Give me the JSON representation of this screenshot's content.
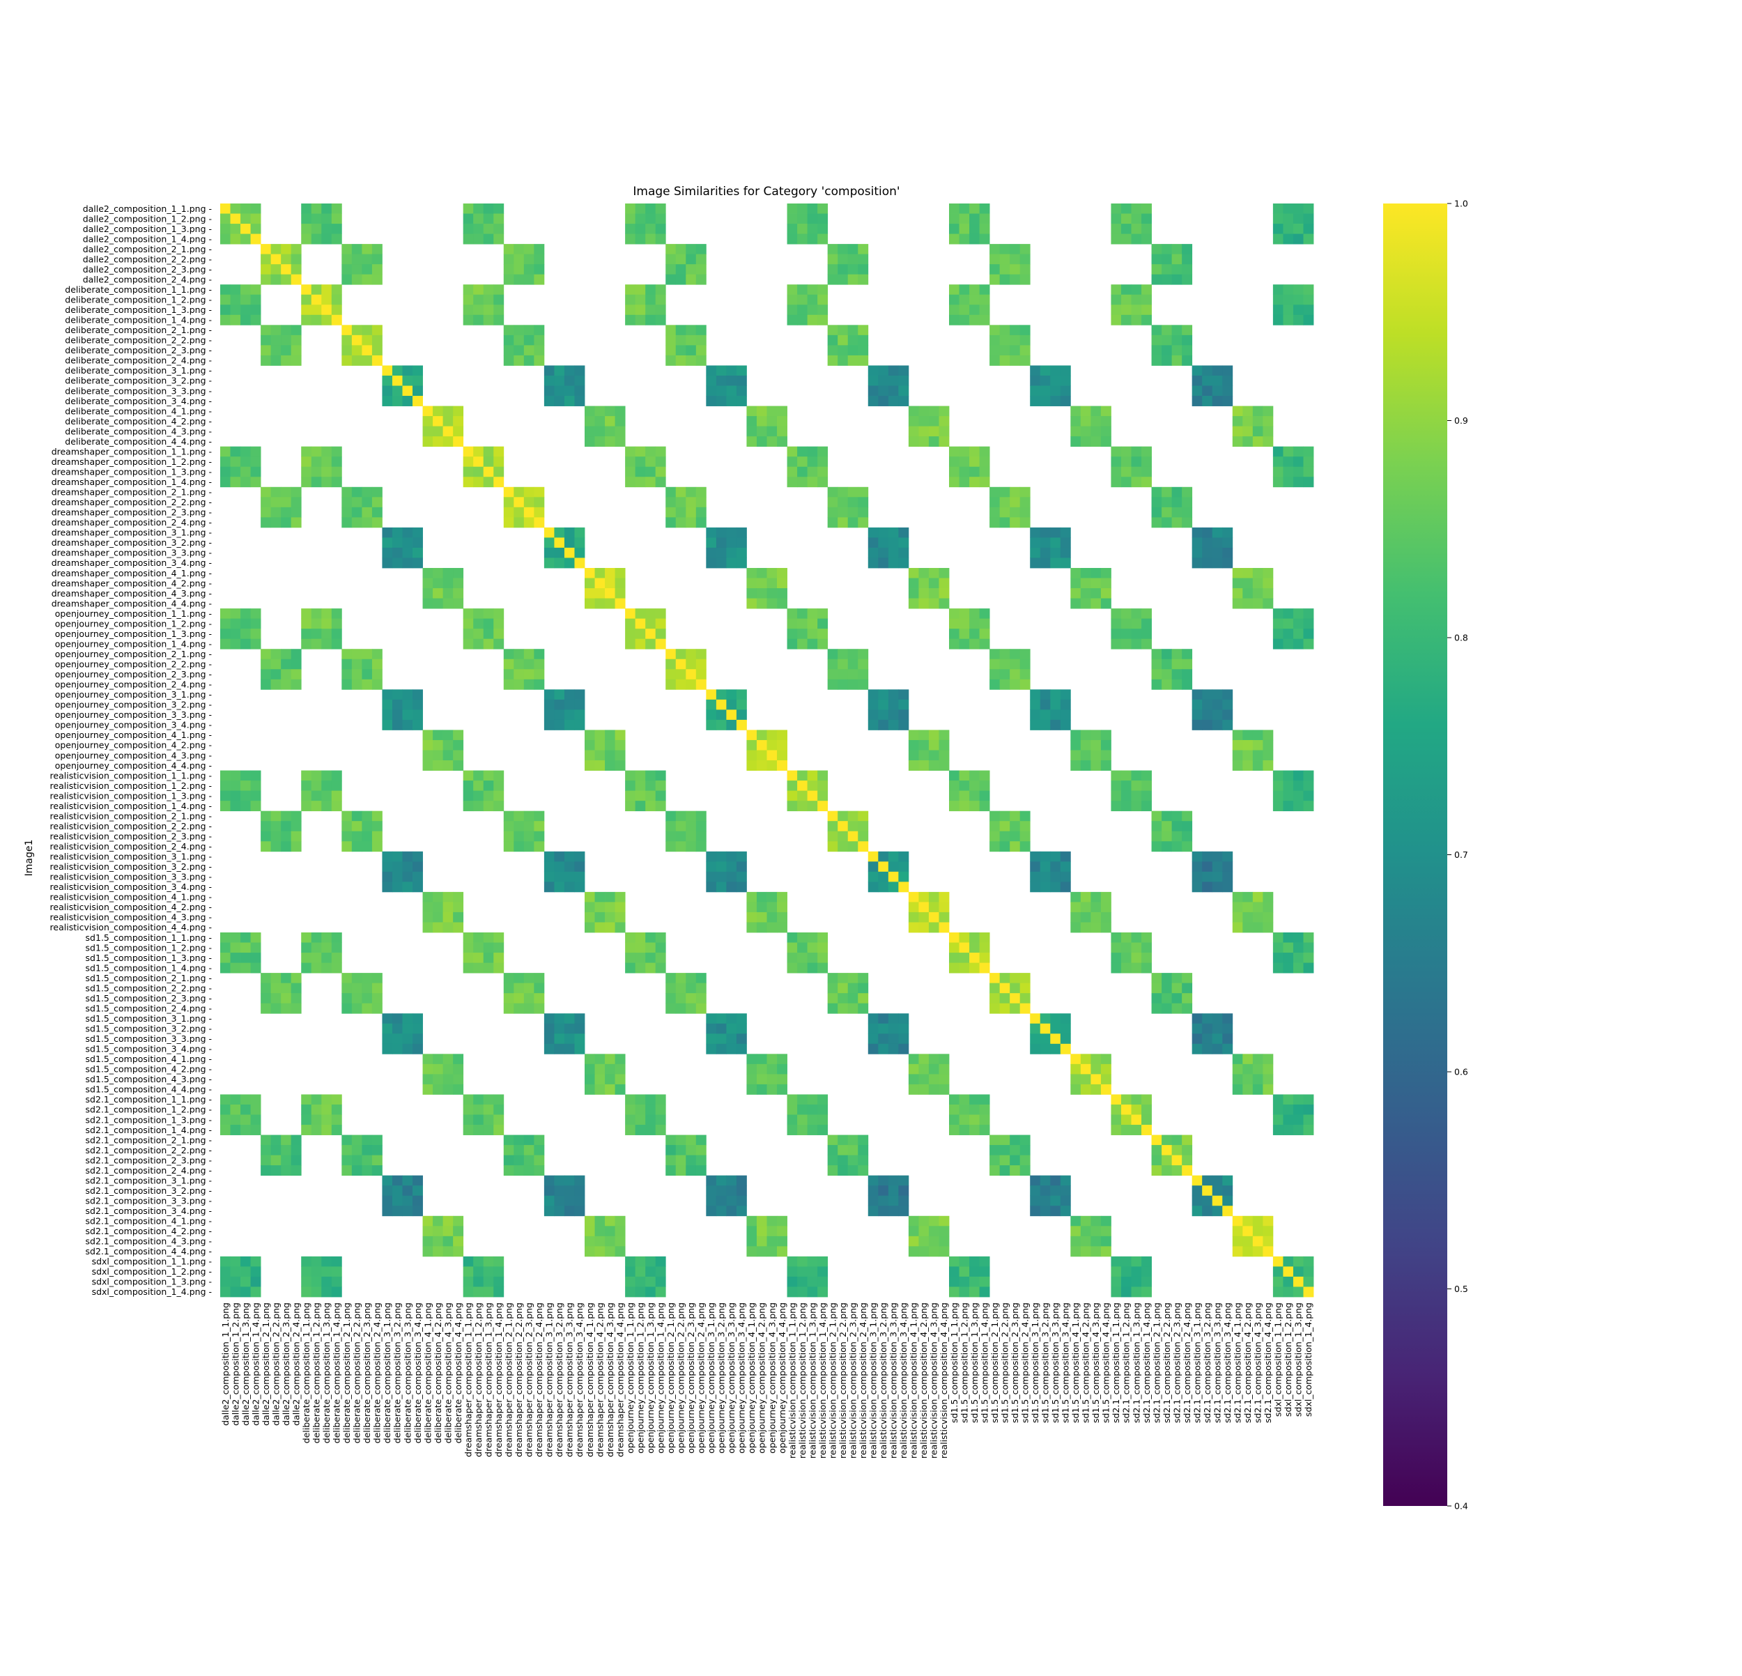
{
  "chart_data": {
    "type": "heatmap",
    "title": "Image Similarities for Category 'composition'",
    "ylabel": "Image1",
    "xlabel": "",
    "models": [
      "dalle2",
      "deliberate",
      "dreamshaper",
      "openjourney",
      "realisticvision",
      "sd1.5",
      "sd2.1",
      "sdxl"
    ],
    "prompts_per_model": {
      "dalle2": 2,
      "deliberate": 4,
      "dreamshaper": 4,
      "openjourney": 4,
      "realisticvision": 4,
      "sd1.5": 4,
      "sd2.1": 4,
      "sdxl": 1
    },
    "images_per_prompt": 4,
    "labels": [
      "dalle2_composition_1_1.png",
      "dalle2_composition_1_2.png",
      "dalle2_composition_1_3.png",
      "dalle2_composition_1_4.png",
      "dalle2_composition_2_1.png",
      "dalle2_composition_2_2.png",
      "dalle2_composition_2_3.png",
      "dalle2_composition_2_4.png",
      "deliberate_composition_1_1.png",
      "deliberate_composition_1_2.png",
      "deliberate_composition_1_3.png",
      "deliberate_composition_1_4.png",
      "deliberate_composition_2_1.png",
      "deliberate_composition_2_2.png",
      "deliberate_composition_2_3.png",
      "deliberate_composition_2_4.png",
      "deliberate_composition_3_1.png",
      "deliberate_composition_3_2.png",
      "deliberate_composition_3_3.png",
      "deliberate_composition_3_4.png",
      "deliberate_composition_4_1.png",
      "deliberate_composition_4_2.png",
      "deliberate_composition_4_3.png",
      "deliberate_composition_4_4.png",
      "dreamshaper_composition_1_1.png",
      "dreamshaper_composition_1_2.png",
      "dreamshaper_composition_1_3.png",
      "dreamshaper_composition_1_4.png",
      "dreamshaper_composition_2_1.png",
      "dreamshaper_composition_2_2.png",
      "dreamshaper_composition_2_3.png",
      "dreamshaper_composition_2_4.png",
      "dreamshaper_composition_3_1.png",
      "dreamshaper_composition_3_2.png",
      "dreamshaper_composition_3_3.png",
      "dreamshaper_composition_3_4.png",
      "dreamshaper_composition_4_1.png",
      "dreamshaper_composition_4_2.png",
      "dreamshaper_composition_4_3.png",
      "dreamshaper_composition_4_4.png",
      "openjourney_composition_1_1.png",
      "openjourney_composition_1_2.png",
      "openjourney_composition_1_3.png",
      "openjourney_composition_1_4.png",
      "openjourney_composition_2_1.png",
      "openjourney_composition_2_2.png",
      "openjourney_composition_2_3.png",
      "openjourney_composition_2_4.png",
      "openjourney_composition_3_1.png",
      "openjourney_composition_3_2.png",
      "openjourney_composition_3_3.png",
      "openjourney_composition_3_4.png",
      "openjourney_composition_4_1.png",
      "openjourney_composition_4_2.png",
      "openjourney_composition_4_3.png",
      "openjourney_composition_4_4.png",
      "realisticvision_composition_1_1.png",
      "realisticvision_composition_1_2.png",
      "realisticvision_composition_1_3.png",
      "realisticvision_composition_1_4.png",
      "realisticvision_composition_2_1.png",
      "realisticvision_composition_2_2.png",
      "realisticvision_composition_2_3.png",
      "realisticvision_composition_2_4.png",
      "realisticvision_composition_3_1.png",
      "realisticvision_composition_3_2.png",
      "realisticvision_composition_3_3.png",
      "realisticvision_composition_3_4.png",
      "realisticvision_composition_4_1.png",
      "realisticvision_composition_4_2.png",
      "realisticvision_composition_4_3.png",
      "realisticvision_composition_4_4.png",
      "sd1.5_composition_1_1.png",
      "sd1.5_composition_1_2.png",
      "sd1.5_composition_1_3.png",
      "sd1.5_composition_1_4.png",
      "sd1.5_composition_2_1.png",
      "sd1.5_composition_2_2.png",
      "sd1.5_composition_2_3.png",
      "sd1.5_composition_2_4.png",
      "sd1.5_composition_3_1.png",
      "sd1.5_composition_3_2.png",
      "sd1.5_composition_3_3.png",
      "sd1.5_composition_3_4.png",
      "sd1.5_composition_4_1.png",
      "sd1.5_composition_4_2.png",
      "sd1.5_composition_4_3.png",
      "sd1.5_composition_4_4.png",
      "sd2.1_composition_1_1.png",
      "sd2.1_composition_1_2.png",
      "sd2.1_composition_1_3.png",
      "sd2.1_composition_1_4.png",
      "sd2.1_composition_2_1.png",
      "sd2.1_composition_2_2.png",
      "sd2.1_composition_2_3.png",
      "sd2.1_composition_2_4.png",
      "sd2.1_composition_3_1.png",
      "sd2.1_composition_3_2.png",
      "sd2.1_composition_3_3.png",
      "sd2.1_composition_3_4.png",
      "sd2.1_composition_4_1.png",
      "sd2.1_composition_4_2.png",
      "sd2.1_composition_4_3.png",
      "sd2.1_composition_4_4.png",
      "sdxl_composition_1_1.png",
      "sdxl_composition_1_2.png",
      "sdxl_composition_1_3.png",
      "sdxl_composition_1_4.png"
    ],
    "same_prompt_block_mean": {
      "1": {
        "dalle2": 0.82,
        "deliberate": 0.86,
        "dreamshaper": 0.86,
        "openjourney": 0.85,
        "realisticvision": 0.84,
        "sd1.5": 0.86,
        "sd2.1": 0.84,
        "sdxl": 0.74
      },
      "2": {
        "dalle2": 0.84,
        "deliberate": 0.85,
        "dreamshaper": 0.86,
        "openjourney": 0.85,
        "realisticvision": 0.85,
        "sd1.5": 0.86,
        "sd2.1": 0.81
      },
      "3": {
        "deliberate": 0.7,
        "dreamshaper": 0.7,
        "openjourney": 0.7,
        "realisticvision": 0.66,
        "sd1.5": 0.69,
        "sd2.1": 0.63
      },
      "4": {
        "deliberate": 0.87,
        "dreamshaper": 0.87,
        "openjourney": 0.86,
        "realisticvision": 0.87,
        "sd1.5": 0.84,
        "sd2.1": 0.87
      }
    },
    "within_block_self_similarity": 1.0,
    "missing_value_note": "",
    "colorbar": {
      "colormap": "viridis",
      "min": 0.4,
      "max": 1.0,
      "ticks": [
        "0.4",
        "0.5",
        "0.6",
        "0.7",
        "0.8",
        "0.9",
        "1.0"
      ]
    },
    "grid": false,
    "legend": "colorbar-right"
  }
}
